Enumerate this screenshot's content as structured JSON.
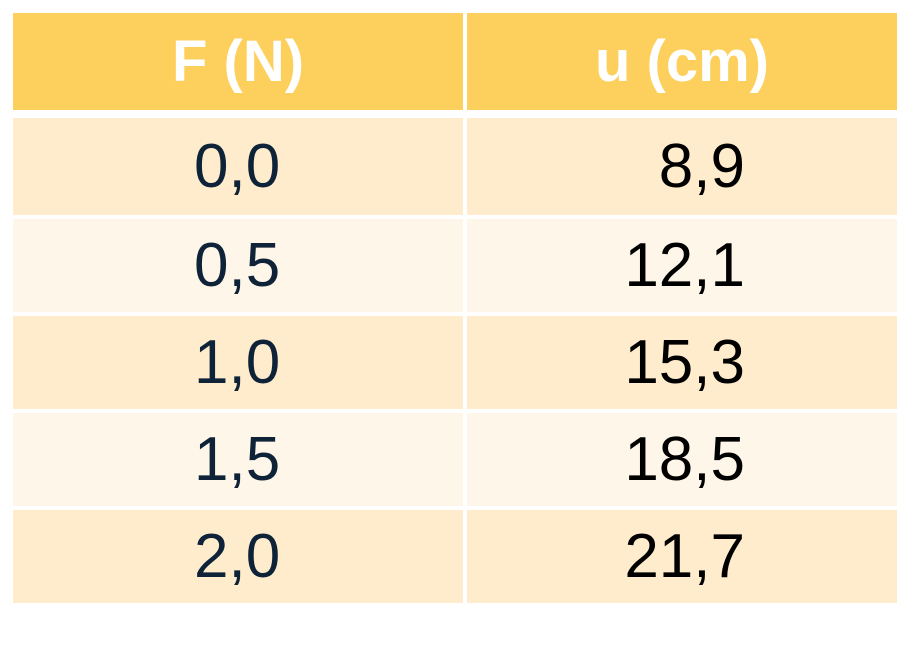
{
  "table": {
    "headers": [
      "F (N)",
      "u (cm)"
    ],
    "rows": [
      [
        "0,0",
        "8,9"
      ],
      [
        "0,5",
        "12,1"
      ],
      [
        "1,0",
        "15,3"
      ],
      [
        "1,5",
        "18,5"
      ],
      [
        "2,0",
        "21,7"
      ]
    ]
  },
  "colors": {
    "header_bg": "#fdd05d",
    "row_dark": "#feeccc",
    "row_light": "#fef6e8",
    "first_column_text": "#0e2238"
  }
}
